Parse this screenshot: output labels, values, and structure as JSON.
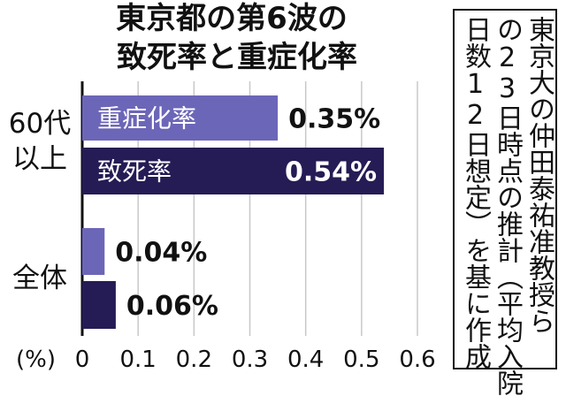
{
  "chart_data": {
    "type": "bar",
    "orientation": "horizontal",
    "title_lines": [
      "東京都の第6波の",
      "致死率と重症化率"
    ],
    "categories": [
      {
        "label_lines": [
          "60代",
          "以上"
        ],
        "bars": [
          {
            "label": "重症化率",
            "value": 0.35,
            "value_label": "0.35%",
            "color": "#6c66b8"
          },
          {
            "label": "致死率",
            "value": 0.54,
            "value_label": "0.54%",
            "color": "#251c55"
          }
        ]
      },
      {
        "label_lines": [
          "全体"
        ],
        "bars": [
          {
            "label": "",
            "value": 0.04,
            "value_label": "0.04%",
            "color": "#6c66b8"
          },
          {
            "label": "",
            "value": 0.06,
            "value_label": "0.06%",
            "color": "#251c55"
          }
        ]
      }
    ],
    "unit_label": "(%)",
    "xlim": [
      0,
      0.6
    ],
    "xticks": [
      {
        "value": 0,
        "label": "0"
      },
      {
        "value": 0.1,
        "label": "0.1"
      },
      {
        "value": 0.2,
        "label": "0.2"
      },
      {
        "value": 0.3,
        "label": "0.3"
      },
      {
        "value": 0.4,
        "label": "0.4"
      },
      {
        "value": 0.5,
        "label": "0.5"
      },
      {
        "value": 0.6,
        "label": "0.6"
      }
    ],
    "grid": "vertical-x"
  },
  "source_note": {
    "columns": [
      "東京大の仲田泰祐准教授ら",
      "の23日時点の推計（平均入院",
      "日数12日想定）を基に作成"
    ]
  },
  "colors": {
    "series_light": "#6c66b8",
    "series_dark": "#251c55",
    "grid": "#c8c8c8",
    "axis": "#111111"
  }
}
